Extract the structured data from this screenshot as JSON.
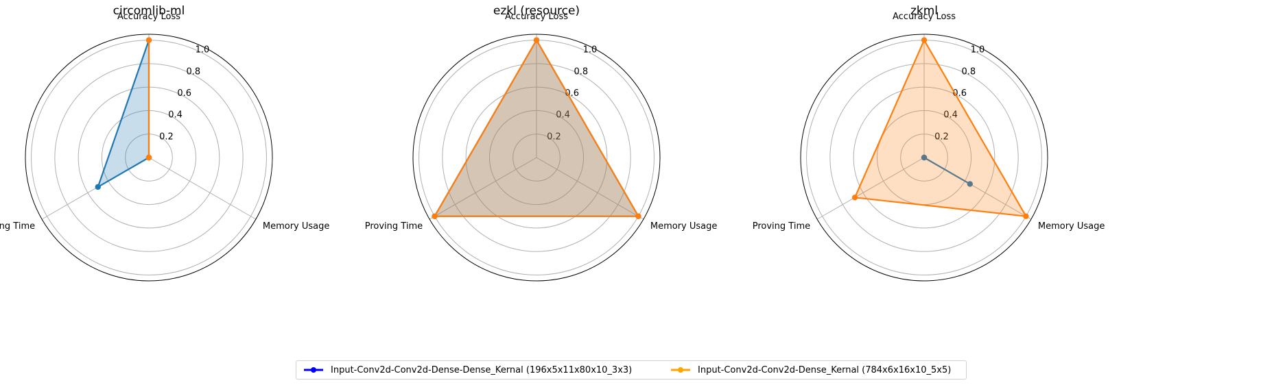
{
  "colors": {
    "series_a_line": "#1f77b4",
    "series_b_line": "#ff7f0e",
    "legend_a": "#0000ff",
    "legend_b": "#ffa500",
    "grid": "#b0b0b0",
    "frame": "#000000"
  },
  "chart_data": [
    {
      "type": "radar",
      "title": "circomlib-ml",
      "axes": [
        "Accuracy Loss",
        "Memory Usage",
        "Proving Time"
      ],
      "rlim": [
        0,
        1.05
      ],
      "rticks": [
        0.2,
        0.4,
        0.6,
        0.8,
        1.0
      ],
      "rtick_labels": [
        "0.2",
        "0.4",
        "0.6",
        "0.8",
        "1.0"
      ],
      "series": [
        {
          "name": "Input-Conv2d-Conv2d-Dense-Dense_Kernal (196x5x11x80x10_3x3)",
          "values": [
            1.0,
            0.0,
            0.5
          ],
          "fill": true
        },
        {
          "name": "Input-Conv2d-Conv2d-Dense_Kernal (784x6x16x10_5x5)",
          "values": [
            1.0,
            0.0,
            0.0
          ],
          "fill": false
        }
      ]
    },
    {
      "type": "radar",
      "title": "ezkl (resource)",
      "axes": [
        "Accuracy Loss",
        "Memory Usage",
        "Proving Time"
      ],
      "rlim": [
        0,
        1.05
      ],
      "rticks": [
        0.2,
        0.4,
        0.6,
        0.8,
        1.0
      ],
      "rtick_labels": [
        "0.2",
        "0.4",
        "0.6",
        "0.8",
        "1.0"
      ],
      "series": [
        {
          "name": "Input-Conv2d-Conv2d-Dense-Dense_Kernal (196x5x11x80x10_3x3)",
          "values": [
            1.0,
            1.0,
            1.0
          ],
          "fill": true
        },
        {
          "name": "Input-Conv2d-Conv2d-Dense_Kernal (784x6x16x10_5x5)",
          "values": [
            1.0,
            1.0,
            1.0
          ],
          "fill": true
        }
      ]
    },
    {
      "type": "radar",
      "title": "zkml",
      "axes": [
        "Accuracy Loss",
        "Memory Usage",
        "Proving Time"
      ],
      "rlim": [
        0,
        1.05
      ],
      "rticks": [
        0.2,
        0.4,
        0.6,
        0.8,
        1.0
      ],
      "rtick_labels": [
        "0.2",
        "0.4",
        "0.6",
        "0.8",
        "1.0"
      ],
      "series": [
        {
          "name": "Input-Conv2d-Conv2d-Dense-Dense_Kernal (196x5x11x80x10_3x3)",
          "values": [
            0.0,
            0.45,
            0.0
          ],
          "fill": false
        },
        {
          "name": "Input-Conv2d-Conv2d-Dense_Kernal (784x6x16x10_5x5)",
          "values": [
            1.0,
            1.0,
            0.68
          ],
          "fill": true
        }
      ]
    }
  ],
  "legend": {
    "items": [
      "Input-Conv2d-Conv2d-Dense-Dense_Kernal (196x5x11x80x10_3x3)",
      "Input-Conv2d-Conv2d-Dense_Kernal (784x6x16x10_5x5)"
    ]
  }
}
